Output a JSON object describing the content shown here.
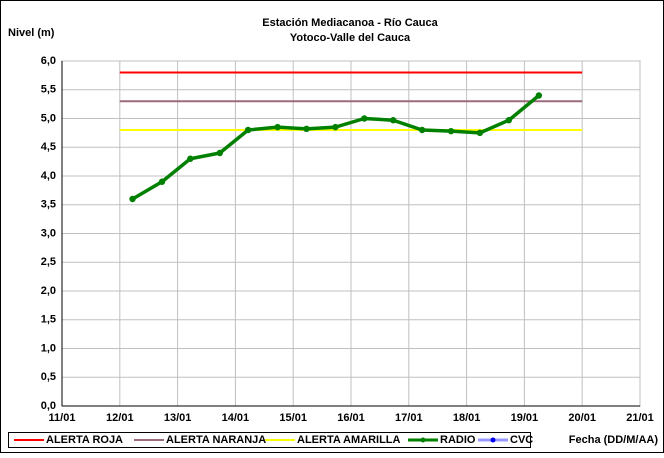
{
  "chart_data": {
    "type": "line",
    "title": "Estación Mediacanoa - Río Cauca",
    "subtitle": "Yotoco-Valle del Cauca",
    "ylabel": "Nivel (m)",
    "xlabel": "Fecha (DD/M/AA)",
    "xlim": [
      11,
      21
    ],
    "xticks": [
      {
        "value": 11,
        "label": "11/01"
      },
      {
        "value": 12,
        "label": "12/01"
      },
      {
        "value": 13,
        "label": "13/01"
      },
      {
        "value": 14,
        "label": "14/01"
      },
      {
        "value": 15,
        "label": "15/01"
      },
      {
        "value": 16,
        "label": "16/01"
      },
      {
        "value": 17,
        "label": "17/01"
      },
      {
        "value": 18,
        "label": "18/01"
      },
      {
        "value": 19,
        "label": "19/01"
      },
      {
        "value": 20,
        "label": "20/01"
      },
      {
        "value": 21,
        "label": "21/01"
      }
    ],
    "ylim": [
      0,
      6
    ],
    "yticks": [
      {
        "value": 0,
        "label": "0,0"
      },
      {
        "value": 0.5,
        "label": "0,5"
      },
      {
        "value": 1,
        "label": "1,0"
      },
      {
        "value": 1.5,
        "label": "1,5"
      },
      {
        "value": 2,
        "label": "2,0"
      },
      {
        "value": 2.5,
        "label": "2,5"
      },
      {
        "value": 3,
        "label": "3,0"
      },
      {
        "value": 3.5,
        "label": "3,5"
      },
      {
        "value": 4,
        "label": "4,0"
      },
      {
        "value": 4.5,
        "label": "4,5"
      },
      {
        "value": 5,
        "label": "5,0"
      },
      {
        "value": 5.5,
        "label": "5,5"
      },
      {
        "value": 6,
        "label": "6,0"
      }
    ],
    "grid": true,
    "legend": "bottom",
    "series": [
      {
        "name": "ALERTA ROJA",
        "color": "#ff0000",
        "x": [
          12,
          20
        ],
        "values": [
          5.8,
          5.8
        ]
      },
      {
        "name": "ALERTA NARANJA",
        "color": "#9b6b7b",
        "x": [
          12,
          20
        ],
        "values": [
          5.3,
          5.3
        ]
      },
      {
        "name": "ALERTA AMARILLA",
        "color": "#ffff00",
        "x": [
          12,
          20
        ],
        "values": [
          4.8,
          4.8
        ]
      },
      {
        "name": "RADIO",
        "color": "#008000",
        "markers": true,
        "x": [
          12.22,
          12.73,
          13.22,
          13.73,
          14.22,
          14.73,
          15.23,
          15.73,
          16.23,
          16.73,
          17.23,
          17.73,
          18.23,
          18.73,
          19.25
        ],
        "values": [
          3.6,
          3.9,
          4.3,
          4.4,
          4.8,
          4.85,
          4.82,
          4.85,
          5.0,
          4.97,
          4.8,
          4.78,
          4.75,
          4.97,
          5.4
        ]
      },
      {
        "name": "CVC",
        "color": "#9999ff",
        "markers": true,
        "x": [],
        "values": []
      }
    ]
  }
}
